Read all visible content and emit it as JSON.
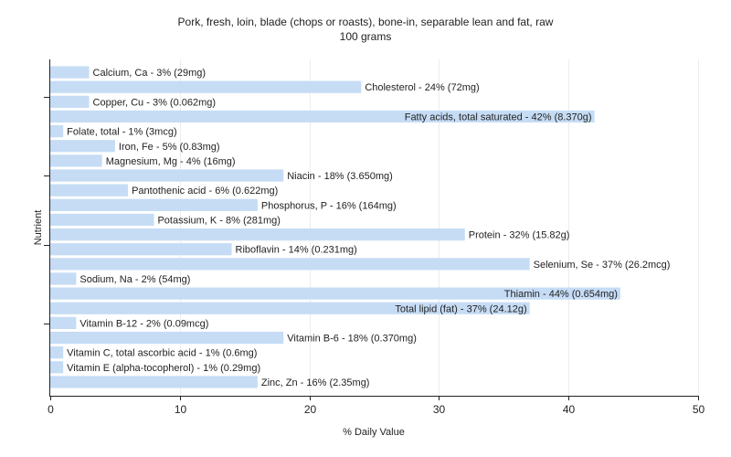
{
  "chart_data": {
    "type": "bar",
    "orientation": "horizontal",
    "title": "Pork, fresh, loin, blade (chops or roasts), bone-in, separable lean and fat, raw",
    "subtitle": "100 grams",
    "xlabel": "% Daily Value",
    "ylabel": "Nutrient",
    "xlim": [
      0,
      50
    ],
    "xticks": [
      0,
      10,
      20,
      30,
      40,
      50
    ],
    "grid": true,
    "bar_color": "#c6dcf5",
    "categories": [
      "Calcium, Ca",
      "Cholesterol",
      "Copper, Cu",
      "Fatty acids, total saturated",
      "Folate, total",
      "Iron, Fe",
      "Magnesium, Mg",
      "Niacin",
      "Pantothenic acid",
      "Phosphorus, P",
      "Potassium, K",
      "Protein",
      "Riboflavin",
      "Selenium, Se",
      "Sodium, Na",
      "Thiamin",
      "Total lipid (fat)",
      "Vitamin B-12",
      "Vitamin B-6",
      "Vitamin C, total ascorbic acid",
      "Vitamin E (alpha-tocopherol)",
      "Zinc, Zn"
    ],
    "values": [
      3,
      24,
      3,
      42,
      1,
      5,
      4,
      18,
      6,
      16,
      8,
      32,
      14,
      37,
      2,
      44,
      37,
      2,
      18,
      1,
      1,
      16
    ],
    "labels": [
      "Calcium, Ca - 3% (29mg)",
      "Cholesterol - 24% (72mg)",
      "Copper, Cu - 3% (0.062mg)",
      "Fatty acids, total saturated - 42% (8.370g)",
      "Folate, total - 1% (3mcg)",
      "Iron, Fe - 5% (0.83mg)",
      "Magnesium, Mg - 4% (16mg)",
      "Niacin - 18% (3.650mg)",
      "Pantothenic acid - 6% (0.622mg)",
      "Phosphorus, P - 16% (164mg)",
      "Potassium, K - 8% (281mg)",
      "Protein - 32% (15.82g)",
      "Riboflavin - 14% (0.231mg)",
      "Selenium, Se - 37% (26.2mcg)",
      "Sodium, Na - 2% (54mg)",
      "Thiamin - 44% (0.654mg)",
      "Total lipid (fat) - 37% (24.12g)",
      "Vitamin B-12 - 2% (0.09mcg)",
      "Vitamin B-6 - 18% (0.370mg)",
      "Vitamin C, total ascorbic acid - 1% (0.6mg)",
      "Vitamin E (alpha-tocopherol) - 1% (0.29mg)",
      "Zinc, Zn - 16% (2.35mg)"
    ]
  }
}
